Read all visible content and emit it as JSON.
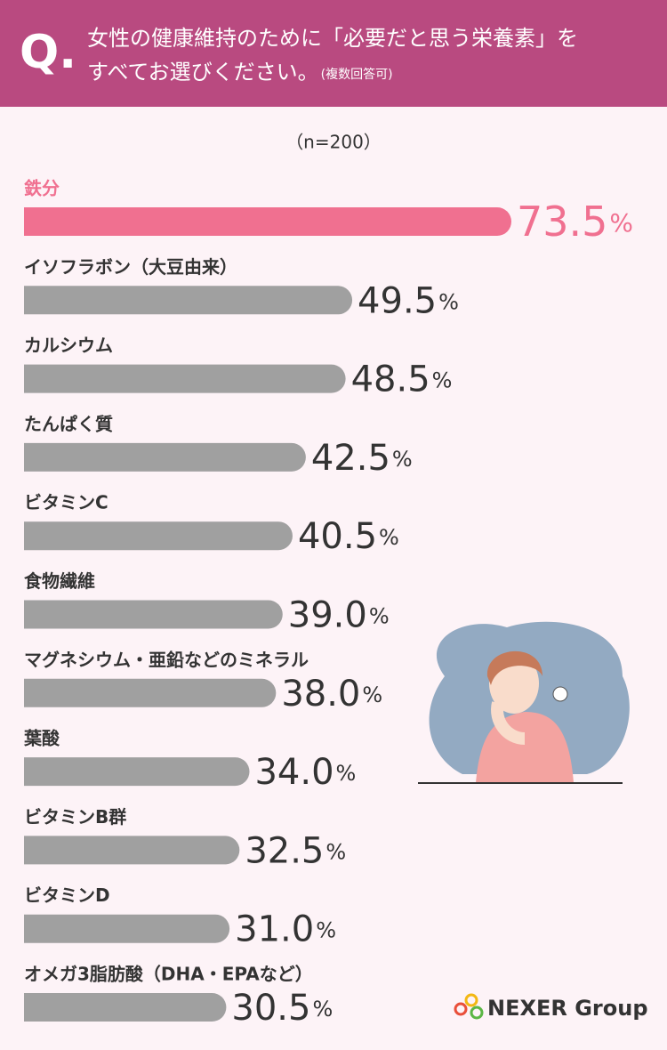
{
  "chart_data": {
    "type": "bar",
    "question_mark": "Q.",
    "title": [
      "女性の健康維持のために「必要だと思う栄養素」を",
      "すべてお選びください。"
    ],
    "title_note": "(複数回答可)",
    "subtitle": "（n=200）",
    "categories": [
      "鉄分",
      "イソフラボン（大豆由来）",
      "カルシウム",
      "たんぱく質",
      "ビタミンC",
      "食物繊維",
      "マグネシウム・亜鉛などのミネラル",
      "葉酸",
      "ビタミンB群",
      "ビタミンD",
      "オメガ3脂肪酸（DHA・EPAなど）"
    ],
    "values": [
      73.5,
      49.5,
      48.5,
      42.5,
      40.5,
      39.0,
      38.0,
      34.0,
      32.5,
      31.0,
      30.5
    ],
    "value_labels": [
      "73.5%",
      "49.5%",
      "48.5%",
      "42.5%",
      "40.5%",
      "39.0%",
      "38.0%",
      "34.0%",
      "32.5%",
      "31.0%",
      "30.5%"
    ],
    "colors": [
      "#f07090",
      "#a0a0a0",
      "#a0a0a0",
      "#a0a0a0",
      "#a0a0a0",
      "#a0a0a0",
      "#a0a0a0",
      "#a0a0a0",
      "#a0a0a0",
      "#a0a0a0",
      "#a0a0a0"
    ],
    "label_colors": [
      "#f07090",
      "#333333",
      "#333333",
      "#333333",
      "#333333",
      "#333333",
      "#333333",
      "#333333",
      "#333333",
      "#333333",
      "#333333"
    ],
    "logo": "NEXER Group"
  }
}
